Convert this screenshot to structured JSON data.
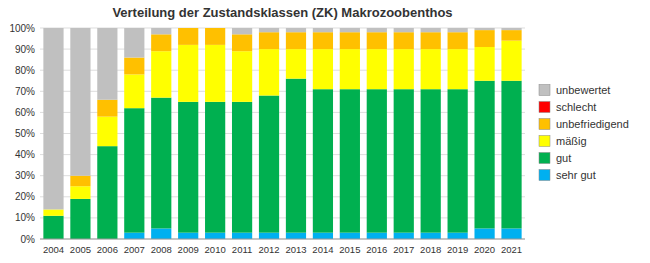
{
  "chart_data": {
    "type": "bar",
    "stacked": true,
    "title": "Verteilung der Zustandsklassen (ZK) Makrozoobenthos",
    "categories": [
      "2004",
      "2005",
      "2006",
      "2007",
      "2008",
      "2009",
      "2010",
      "2011",
      "2012",
      "2013",
      "2014",
      "2015",
      "2016",
      "2017",
      "2018",
      "2019",
      "2020",
      "2021"
    ],
    "series": [
      {
        "name": "sehr gut",
        "color": "#00B0F0",
        "values": [
          0,
          0,
          0,
          3,
          5,
          3,
          3,
          3,
          3,
          3,
          3,
          3,
          3,
          3,
          3,
          3,
          5,
          5
        ]
      },
      {
        "name": "gut",
        "color": "#00B050",
        "values": [
          11,
          19,
          44,
          59,
          62,
          62,
          62,
          62,
          65,
          73,
          68,
          68,
          68,
          68,
          68,
          68,
          70,
          70
        ]
      },
      {
        "name": "mäßig",
        "color": "#FFFF00",
        "values": [
          3,
          6,
          14,
          16,
          22,
          27,
          27,
          24,
          22,
          14,
          19,
          19,
          19,
          19,
          19,
          19,
          16,
          19
        ]
      },
      {
        "name": "unbefriedigend",
        "color": "#FFC000",
        "values": [
          0,
          5,
          8,
          8,
          8,
          8,
          8,
          8,
          8,
          8,
          8,
          8,
          8,
          8,
          8,
          8,
          8,
          5
        ]
      },
      {
        "name": "schlecht",
        "color": "#FF0000",
        "values": [
          0,
          0,
          0,
          0,
          0,
          0,
          0,
          0,
          0,
          0,
          0,
          0,
          0,
          0,
          0,
          0,
          0,
          0
        ]
      },
      {
        "name": "unbewertet",
        "color": "#C0C0C0",
        "values": [
          86,
          70,
          34,
          14,
          3,
          0,
          0,
          3,
          2,
          2,
          2,
          2,
          2,
          2,
          2,
          2,
          1,
          1
        ]
      }
    ],
    "ylim": [
      0,
      100
    ],
    "yticks": [
      {
        "value": 0,
        "label": "0%"
      },
      {
        "value": 10,
        "label": "10%"
      },
      {
        "value": 20,
        "label": "20%"
      },
      {
        "value": 30,
        "label": "30%"
      },
      {
        "value": 40,
        "label": "40%"
      },
      {
        "value": 50,
        "label": "50%"
      },
      {
        "value": 60,
        "label": "60%"
      },
      {
        "value": 70,
        "label": "70%"
      },
      {
        "value": 80,
        "label": "80%"
      },
      {
        "value": 90,
        "label": "90%"
      },
      {
        "value": 100,
        "label": "100%"
      }
    ],
    "grid": true,
    "legend": "right"
  }
}
